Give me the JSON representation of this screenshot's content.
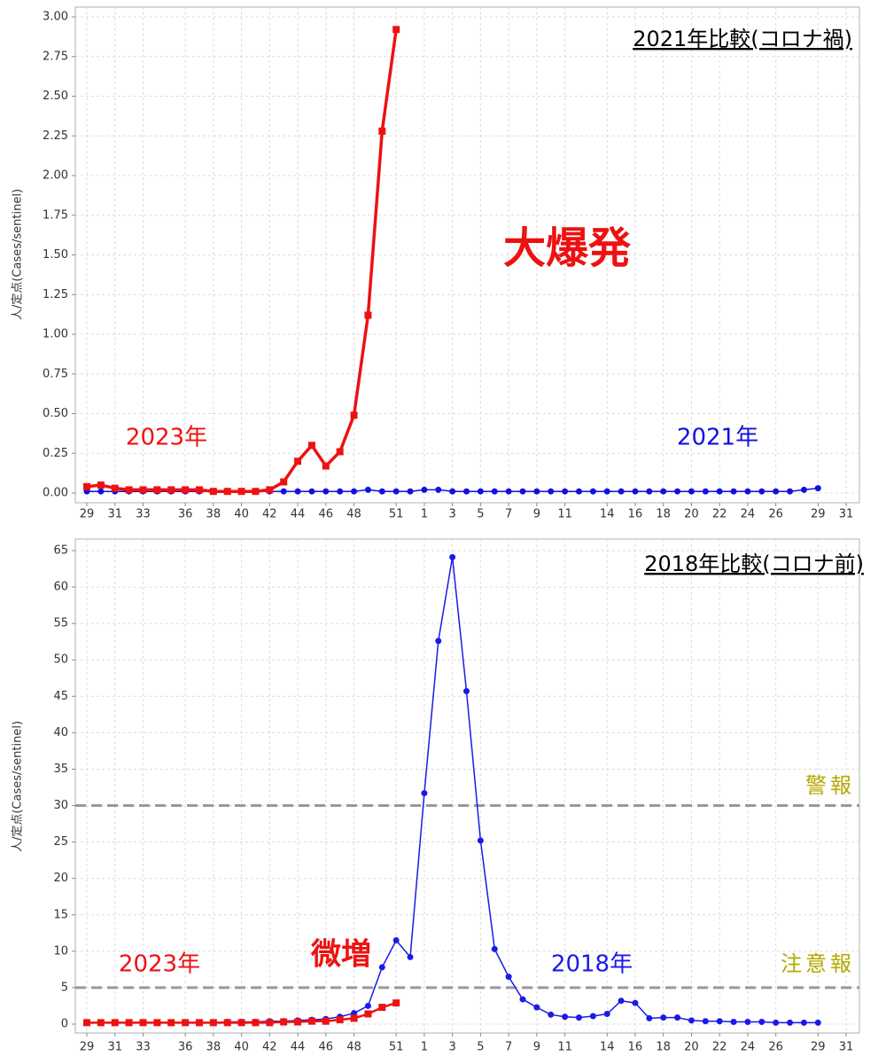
{
  "chart_data": [
    {
      "type": "line",
      "title": "2021年比較(コロナ禍)",
      "y_label": "人/定点(Cases/sentinel)",
      "categories": [
        "29",
        null,
        "31",
        null,
        "33",
        null,
        null,
        "36",
        null,
        "38",
        null,
        "40",
        null,
        "42",
        null,
        "44",
        null,
        "46",
        null,
        "48",
        null,
        null,
        "51",
        null,
        "1",
        null,
        "3",
        null,
        "5",
        null,
        "7",
        null,
        "9",
        null,
        "11",
        null,
        null,
        "14",
        null,
        "16",
        null,
        "18",
        null,
        "20",
        null,
        "22",
        null,
        "24",
        null,
        "26",
        null,
        null,
        "29",
        null,
        "31"
      ],
      "ylim": [
        0,
        3
      ],
      "yticks": [
        {
          "value": 0,
          "label": "0.00"
        },
        {
          "value": 0.25,
          "label": "0.25"
        },
        {
          "value": 0.5,
          "label": "0.50"
        },
        {
          "value": 0.75,
          "label": "0.75"
        },
        {
          "value": 1,
          "label": "1.00"
        },
        {
          "value": 1.25,
          "label": "1.25"
        },
        {
          "value": 1.5,
          "label": "1.50"
        },
        {
          "value": 1.75,
          "label": "1.75"
        },
        {
          "value": 2,
          "label": "2.00"
        },
        {
          "value": 2.25,
          "label": "2.25"
        },
        {
          "value": 2.5,
          "label": "2.50"
        },
        {
          "value": 2.75,
          "label": "2.75"
        },
        {
          "value": 3,
          "label": "3.00"
        }
      ],
      "grid": true,
      "series": [
        {
          "name": "2021年",
          "color": "#1010e0",
          "marker": "circle",
          "values": [
            0.01,
            0.01,
            0.01,
            0.01,
            0.01,
            0.01,
            0.01,
            0.01,
            0.01,
            0.01,
            0.01,
            0.01,
            0.01,
            0.01,
            0.01,
            0.01,
            0.01,
            0.01,
            0.01,
            0.01,
            0.02,
            0.01,
            0.01,
            0.01,
            0.02,
            0.02,
            0.01,
            0.01,
            0.01,
            0.01,
            0.01,
            0.01,
            0.01,
            0.01,
            0.01,
            0.01,
            0.01,
            0.01,
            0.01,
            0.01,
            0.01,
            0.01,
            0.01,
            0.01,
            0.01,
            0.01,
            0.01,
            0.01,
            0.01,
            0.01,
            0.01,
            0.02,
            0.03,
            null,
            null
          ]
        },
        {
          "name": "2023年",
          "color": "#ee1111",
          "marker": "square",
          "values": [
            0.04,
            0.05,
            0.03,
            0.02,
            0.02,
            0.02,
            0.02,
            0.02,
            0.02,
            0.01,
            0.01,
            0.01,
            0.01,
            0.02,
            0.07,
            0.2,
            0.3,
            0.17,
            0.26,
            0.49,
            1.12,
            2.28,
            2.92,
            null,
            null,
            null,
            null,
            null,
            null,
            null,
            null,
            null,
            null,
            null,
            null,
            null,
            null,
            null,
            null,
            null,
            null,
            null,
            null,
            null,
            null,
            null,
            null,
            null,
            null,
            null,
            null,
            null,
            null,
            null,
            null
          ]
        }
      ],
      "annotations": [
        {
          "text": "大爆発",
          "color": "#ee1111"
        }
      ]
    },
    {
      "type": "line",
      "title": "2018年比較(コロナ前)",
      "y_label": "人/定点(Cases/sentinel)",
      "categories": [
        "29",
        null,
        "31",
        null,
        "33",
        null,
        null,
        "36",
        null,
        "38",
        null,
        "40",
        null,
        "42",
        null,
        "44",
        null,
        "46",
        null,
        "48",
        null,
        null,
        "51",
        null,
        "1",
        null,
        "3",
        null,
        "5",
        null,
        "7",
        null,
        "9",
        null,
        "11",
        null,
        null,
        "14",
        null,
        "16",
        null,
        "18",
        null,
        "20",
        null,
        "22",
        null,
        "24",
        null,
        "26",
        null,
        null,
        "29",
        null,
        "31"
      ],
      "ylim": [
        0,
        65
      ],
      "yticks": [
        0,
        5,
        10,
        15,
        20,
        25,
        30,
        35,
        40,
        45,
        50,
        55,
        60,
        65
      ],
      "grid": true,
      "reference_lines": [
        {
          "value": 30,
          "label": "警報",
          "color": "#b5a800"
        },
        {
          "value": 5,
          "label": "注意報",
          "color": "#b5a800"
        }
      ],
      "series": [
        {
          "name": "2018年",
          "color": "#1a1ae8",
          "marker": "circle",
          "values": [
            0.2,
            0.2,
            0.2,
            0.2,
            0.2,
            0.2,
            0.2,
            0.2,
            0.2,
            0.2,
            0.3,
            0.3,
            0.3,
            0.4,
            0.4,
            0.5,
            0.6,
            0.7,
            1.0,
            1.5,
            2.5,
            7.8,
            11.5,
            9.2,
            31.7,
            52.6,
            64.1,
            45.7,
            25.2,
            10.3,
            6.5,
            3.4,
            2.3,
            1.3,
            1.0,
            0.9,
            1.1,
            1.4,
            3.2,
            2.9,
            0.8,
            0.9,
            0.9,
            0.5,
            0.4,
            0.4,
            0.3,
            0.3,
            0.3,
            0.2,
            0.2,
            0.2,
            0.2,
            null,
            null
          ]
        },
        {
          "name": "2023年",
          "color": "#ee1111",
          "marker": "square",
          "values": [
            0.2,
            0.2,
            0.2,
            0.2,
            0.2,
            0.2,
            0.2,
            0.2,
            0.2,
            0.2,
            0.2,
            0.2,
            0.2,
            0.2,
            0.3,
            0.3,
            0.4,
            0.4,
            0.6,
            0.8,
            1.4,
            2.3,
            2.9,
            null,
            null,
            null,
            null,
            null,
            null,
            null,
            null,
            null,
            null,
            null,
            null,
            null,
            null,
            null,
            null,
            null,
            null,
            null,
            null,
            null,
            null,
            null,
            null,
            null,
            null,
            null,
            null,
            null,
            null,
            null,
            null
          ]
        }
      ],
      "annotations": [
        {
          "text": "微増",
          "color": "#ee1111"
        }
      ]
    }
  ]
}
